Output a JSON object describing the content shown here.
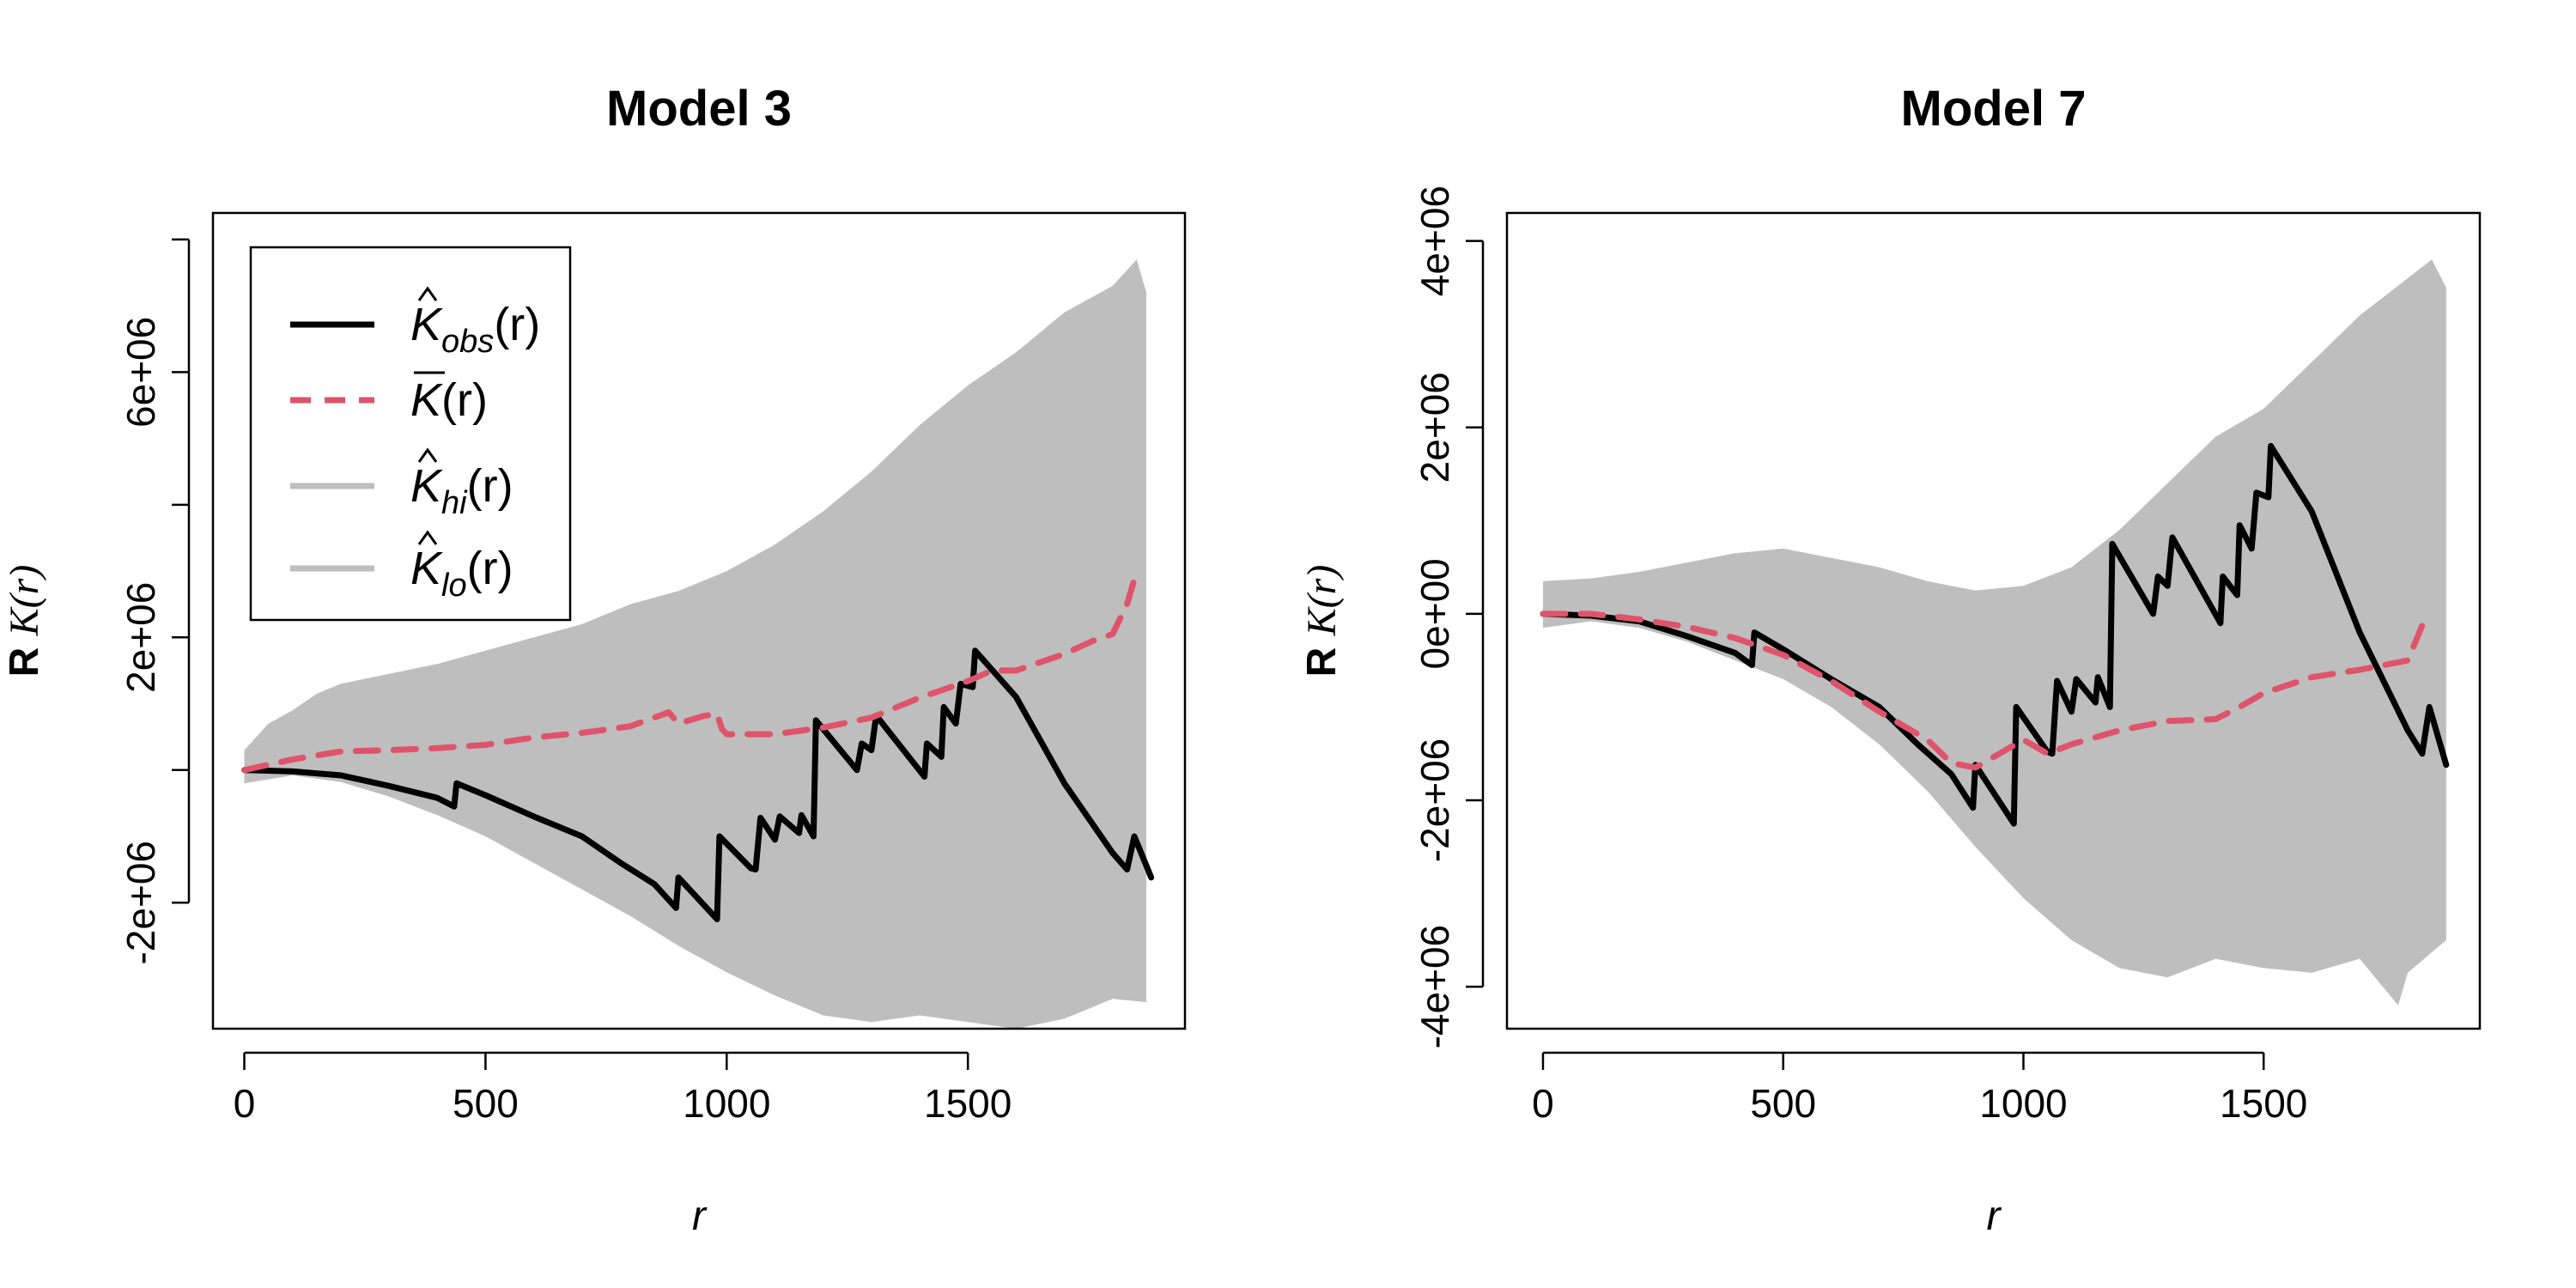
{
  "colors": {
    "observed": "#000000",
    "mean": "#DF536B",
    "envelope": "#BEBEBE",
    "background": "#FFFFFF"
  },
  "chart_data": [
    {
      "type": "line",
      "title": "Model 3",
      "xlabel": "r",
      "ylabel_prefix": "R",
      "ylabel_func": "K(r)",
      "xlim": [
        -65,
        1950
      ],
      "ylim": [
        -3900000,
        8400000
      ],
      "xticks": [
        0,
        500,
        1000,
        1500
      ],
      "xtick_labels": [
        "0",
        "500",
        "1000",
        "1500"
      ],
      "yticks": [
        -2000000,
        0,
        2000000,
        4000000,
        6000000,
        8000000
      ],
      "ytick_labels": [
        "-2e+06",
        "",
        "2e+06",
        "",
        "6e+06",
        ""
      ],
      "legend": {
        "position": "top-left",
        "entries": [
          {
            "key": "obs",
            "base": "K",
            "accent": "hat",
            "sub": "obs",
            "arg": "(r)"
          },
          {
            "key": "mean",
            "base": "K",
            "accent": "bar",
            "sub": "",
            "arg": "(r)"
          },
          {
            "key": "hi",
            "base": "K",
            "accent": "hat",
            "sub": "hi",
            "arg": "(r)"
          },
          {
            "key": "lo",
            "base": "K",
            "accent": "hat",
            "sub": "lo",
            "arg": "(r)"
          }
        ]
      },
      "series": [
        {
          "key": "obs",
          "style": "solid",
          "points": [
            [
              0,
              0
            ],
            [
              100,
              -20000
            ],
            [
              200,
              -80000
            ],
            [
              300,
              -240000
            ],
            [
              400,
              -420000
            ],
            [
              435,
              -550000
            ],
            [
              440,
              -200000
            ],
            [
              500,
              -380000
            ],
            [
              600,
              -700000
            ],
            [
              700,
              -1000000
            ],
            [
              780,
              -1400000
            ],
            [
              850,
              -1720000
            ],
            [
              895,
              -2080000
            ],
            [
              900,
              -1620000
            ],
            [
              980,
              -2250000
            ],
            [
              985,
              -1000000
            ],
            [
              1050,
              -1480000
            ],
            [
              1060,
              -1500000
            ],
            [
              1070,
              -720000
            ],
            [
              1100,
              -1050000
            ],
            [
              1110,
              -700000
            ],
            [
              1150,
              -950000
            ],
            [
              1155,
              -680000
            ],
            [
              1180,
              -1000000
            ],
            [
              1185,
              750000
            ],
            [
              1270,
              0
            ],
            [
              1280,
              400000
            ],
            [
              1300,
              300000
            ],
            [
              1310,
              820000
            ],
            [
              1410,
              -100000
            ],
            [
              1415,
              400000
            ],
            [
              1445,
              200000
            ],
            [
              1450,
              950000
            ],
            [
              1475,
              700000
            ],
            [
              1485,
              1300000
            ],
            [
              1510,
              1250000
            ],
            [
              1515,
              1800000
            ],
            [
              1600,
              1100000
            ],
            [
              1700,
              -200000
            ],
            [
              1800,
              -1250000
            ],
            [
              1830,
              -1500000
            ],
            [
              1845,
              -1000000
            ],
            [
              1880,
              -1620000
            ]
          ]
        },
        {
          "key": "mean",
          "style": "dashed",
          "points": [
            [
              0,
              0
            ],
            [
              100,
              160000
            ],
            [
              200,
              280000
            ],
            [
              300,
              300000
            ],
            [
              400,
              330000
            ],
            [
              500,
              380000
            ],
            [
              600,
              490000
            ],
            [
              700,
              560000
            ],
            [
              800,
              660000
            ],
            [
              880,
              870000
            ],
            [
              900,
              700000
            ],
            [
              950,
              810000
            ],
            [
              980,
              850000
            ],
            [
              990,
              620000
            ],
            [
              1000,
              540000
            ],
            [
              1050,
              540000
            ],
            [
              1100,
              540000
            ],
            [
              1200,
              640000
            ],
            [
              1300,
              790000
            ],
            [
              1400,
              1090000
            ],
            [
              1500,
              1340000
            ],
            [
              1550,
              1500000
            ],
            [
              1600,
              1500000
            ],
            [
              1700,
              1750000
            ],
            [
              1760,
              1950000
            ],
            [
              1800,
              2050000
            ],
            [
              1830,
              2500000
            ],
            [
              1850,
              3000000
            ]
          ]
        }
      ],
      "envelope": {
        "upper": [
          [
            0,
            300000
          ],
          [
            50,
            700000
          ],
          [
            100,
            900000
          ],
          [
            150,
            1150000
          ],
          [
            200,
            1300000
          ],
          [
            300,
            1450000
          ],
          [
            400,
            1600000
          ],
          [
            500,
            1800000
          ],
          [
            600,
            2000000
          ],
          [
            700,
            2200000
          ],
          [
            800,
            2500000
          ],
          [
            900,
            2700000
          ],
          [
            1000,
            3000000
          ],
          [
            1100,
            3400000
          ],
          [
            1200,
            3900000
          ],
          [
            1300,
            4500000
          ],
          [
            1400,
            5200000
          ],
          [
            1500,
            5800000
          ],
          [
            1600,
            6300000
          ],
          [
            1700,
            6900000
          ],
          [
            1800,
            7300000
          ],
          [
            1850,
            7700000
          ],
          [
            1870,
            7200000
          ]
        ],
        "lower": [
          [
            0,
            -200000
          ],
          [
            100,
            -80000
          ],
          [
            200,
            -180000
          ],
          [
            300,
            -400000
          ],
          [
            400,
            -680000
          ],
          [
            500,
            -1000000
          ],
          [
            600,
            -1400000
          ],
          [
            700,
            -1800000
          ],
          [
            800,
            -2200000
          ],
          [
            900,
            -2650000
          ],
          [
            1000,
            -3050000
          ],
          [
            1100,
            -3400000
          ],
          [
            1200,
            -3700000
          ],
          [
            1300,
            -3800000
          ],
          [
            1400,
            -3700000
          ],
          [
            1500,
            -3800000
          ],
          [
            1600,
            -3900000
          ],
          [
            1700,
            -3750000
          ],
          [
            1750,
            -3600000
          ],
          [
            1800,
            -3450000
          ],
          [
            1870,
            -3500000
          ]
        ]
      }
    },
    {
      "type": "line",
      "title": "Model 7",
      "xlabel": "r",
      "ylabel_prefix": "R",
      "ylabel_func": "K(r)",
      "xlim": [
        -75,
        1950
      ],
      "ylim": [
        -4450000,
        4300000
      ],
      "xticks": [
        0,
        500,
        1000,
        1500
      ],
      "xtick_labels": [
        "0",
        "500",
        "1000",
        "1500"
      ],
      "yticks": [
        -4000000,
        -2000000,
        0,
        2000000,
        4000000
      ],
      "ytick_labels": [
        "-4e+06",
        "-2e+06",
        "0e+00",
        "2e+06",
        "4e+06"
      ],
      "series": [
        {
          "key": "obs",
          "style": "solid",
          "points": [
            [
              0,
              0
            ],
            [
              100,
              -20000
            ],
            [
              200,
              -80000
            ],
            [
              300,
              -240000
            ],
            [
              400,
              -420000
            ],
            [
              435,
              -550000
            ],
            [
              440,
              -200000
            ],
            [
              500,
              -380000
            ],
            [
              600,
              -700000
            ],
            [
              700,
              -1000000
            ],
            [
              780,
              -1400000
            ],
            [
              850,
              -1720000
            ],
            [
              895,
              -2080000
            ],
            [
              900,
              -1620000
            ],
            [
              980,
              -2250000
            ],
            [
              985,
              -1000000
            ],
            [
              1050,
              -1480000
            ],
            [
              1060,
              -1500000
            ],
            [
              1070,
              -720000
            ],
            [
              1100,
              -1050000
            ],
            [
              1110,
              -700000
            ],
            [
              1150,
              -950000
            ],
            [
              1155,
              -680000
            ],
            [
              1180,
              -1000000
            ],
            [
              1185,
              750000
            ],
            [
              1270,
              0
            ],
            [
              1280,
              400000
            ],
            [
              1300,
              300000
            ],
            [
              1310,
              820000
            ],
            [
              1410,
              -100000
            ],
            [
              1415,
              400000
            ],
            [
              1445,
              200000
            ],
            [
              1450,
              950000
            ],
            [
              1475,
              700000
            ],
            [
              1485,
              1300000
            ],
            [
              1510,
              1250000
            ],
            [
              1515,
              1800000
            ],
            [
              1600,
              1100000
            ],
            [
              1700,
              -200000
            ],
            [
              1800,
              -1250000
            ],
            [
              1830,
              -1500000
            ],
            [
              1845,
              -1000000
            ],
            [
              1880,
              -1620000
            ]
          ]
        },
        {
          "key": "mean",
          "style": "dashed",
          "points": [
            [
              0,
              0
            ],
            [
              100,
              0
            ],
            [
              200,
              -60000
            ],
            [
              300,
              -140000
            ],
            [
              400,
              -260000
            ],
            [
              500,
              -440000
            ],
            [
              600,
              -720000
            ],
            [
              700,
              -1050000
            ],
            [
              800,
              -1350000
            ],
            [
              850,
              -1600000
            ],
            [
              900,
              -1650000
            ],
            [
              950,
              -1500000
            ],
            [
              1000,
              -1350000
            ],
            [
              1050,
              -1500000
            ],
            [
              1100,
              -1400000
            ],
            [
              1200,
              -1250000
            ],
            [
              1300,
              -1150000
            ],
            [
              1400,
              -1130000
            ],
            [
              1450,
              -1000000
            ],
            [
              1500,
              -850000
            ],
            [
              1600,
              -680000
            ],
            [
              1700,
              -600000
            ],
            [
              1750,
              -550000
            ],
            [
              1800,
              -500000
            ],
            [
              1840,
              0
            ]
          ]
        }
      ],
      "envelope": {
        "upper": [
          [
            0,
            350000
          ],
          [
            100,
            380000
          ],
          [
            200,
            450000
          ],
          [
            300,
            550000
          ],
          [
            400,
            650000
          ],
          [
            500,
            700000
          ],
          [
            600,
            600000
          ],
          [
            700,
            500000
          ],
          [
            800,
            350000
          ],
          [
            900,
            250000
          ],
          [
            1000,
            300000
          ],
          [
            1100,
            500000
          ],
          [
            1200,
            900000
          ],
          [
            1300,
            1400000
          ],
          [
            1400,
            1900000
          ],
          [
            1500,
            2200000
          ],
          [
            1600,
            2700000
          ],
          [
            1700,
            3200000
          ],
          [
            1800,
            3600000
          ],
          [
            1850,
            3800000
          ],
          [
            1880,
            3500000
          ]
        ],
        "lower": [
          [
            0,
            -150000
          ],
          [
            100,
            -80000
          ],
          [
            200,
            -150000
          ],
          [
            300,
            -300000
          ],
          [
            400,
            -500000
          ],
          [
            500,
            -700000
          ],
          [
            600,
            -1000000
          ],
          [
            700,
            -1400000
          ],
          [
            800,
            -1900000
          ],
          [
            900,
            -2500000
          ],
          [
            1000,
            -3050000
          ],
          [
            1100,
            -3500000
          ],
          [
            1200,
            -3800000
          ],
          [
            1300,
            -3900000
          ],
          [
            1400,
            -3700000
          ],
          [
            1500,
            -3800000
          ],
          [
            1600,
            -3850000
          ],
          [
            1700,
            -3700000
          ],
          [
            1780,
            -4200000
          ],
          [
            1800,
            -3850000
          ],
          [
            1880,
            -3500000
          ]
        ]
      }
    }
  ]
}
